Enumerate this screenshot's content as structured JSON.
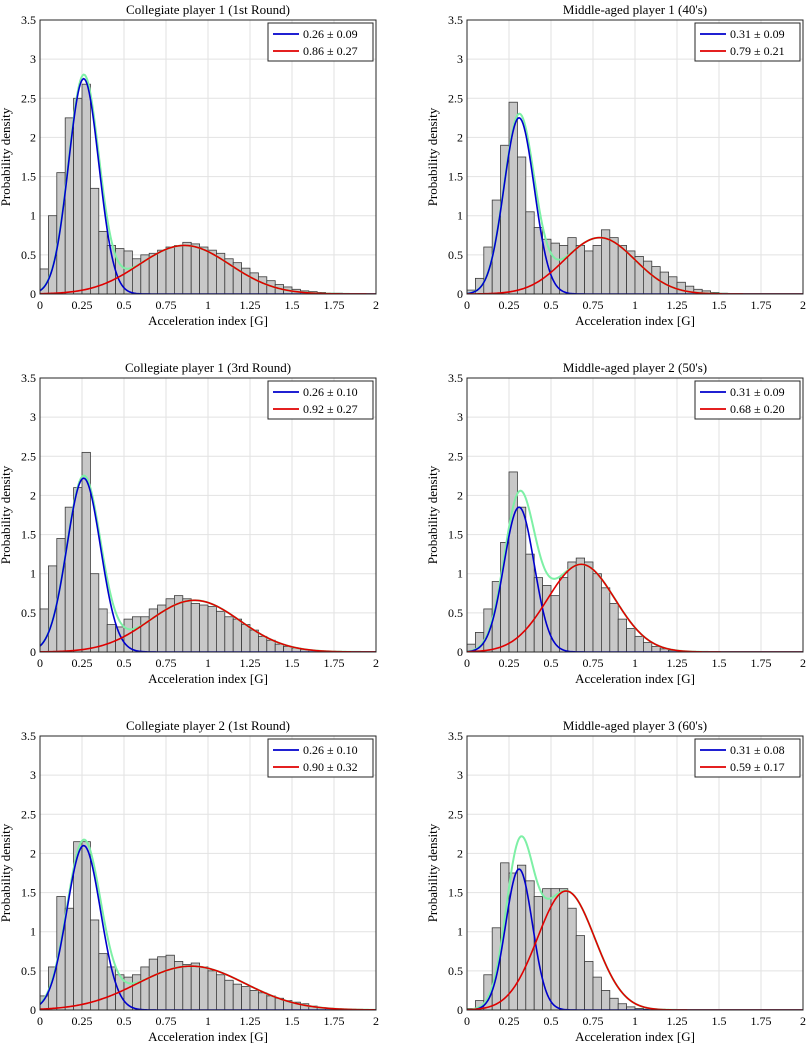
{
  "chart_data": [
    {
      "type": "bar",
      "title": "Collegiate player 1 (1st Round)",
      "xlabel": "Acceleration index [G]",
      "ylabel": "Probability density",
      "xlim": [
        0,
        2
      ],
      "ylim": [
        0,
        3.5
      ],
      "xticks": [
        "0",
        "0.25",
        "0.5",
        "0.75",
        "1",
        "1.25",
        "1.5",
        "1.75",
        "2"
      ],
      "yticks": [
        "0",
        "0.5",
        "1",
        "1.5",
        "2",
        "2.5",
        "3",
        "3.5"
      ],
      "bin_width": 0.05,
      "bin_start": 0.025,
      "values": [
        0.32,
        1.0,
        1.55,
        2.25,
        2.5,
        2.68,
        1.35,
        0.8,
        0.62,
        0.58,
        0.55,
        0.45,
        0.5,
        0.52,
        0.56,
        0.6,
        0.62,
        0.66,
        0.64,
        0.6,
        0.56,
        0.52,
        0.45,
        0.4,
        0.33,
        0.27,
        0.22,
        0.17,
        0.12,
        0.09,
        0.06,
        0.04,
        0.03,
        0.02,
        0.01,
        0.01,
        0.0,
        0.0,
        0.0
      ],
      "series": [
        {
          "name": "0.26 ± 0.09",
          "color": "#0000cc",
          "mean": 0.26,
          "std": 0.09,
          "peak": 2.75
        },
        {
          "name": "0.86 ± 0.27",
          "color": "#e00000",
          "mean": 0.86,
          "std": 0.27,
          "peak": 0.62
        }
      ],
      "mixture_color": "#7ef0a6",
      "legend": "top-right"
    },
    {
      "type": "bar",
      "title": "Middle-aged player 1 (40's)",
      "xlabel": "Acceleration index [G]",
      "ylabel": "Probability density",
      "xlim": [
        0,
        2
      ],
      "ylim": [
        0,
        3.5
      ],
      "xticks": [
        "0",
        "0.25",
        "0.5",
        "0.75",
        "1",
        "1.25",
        "1.5",
        "1.75",
        "2"
      ],
      "yticks": [
        "0",
        "0.5",
        "1",
        "1.5",
        "2",
        "2.5",
        "3",
        "3.5"
      ],
      "bin_width": 0.05,
      "bin_start": 0.025,
      "values": [
        0.05,
        0.2,
        0.6,
        1.2,
        1.9,
        2.45,
        1.75,
        1.05,
        0.85,
        0.7,
        0.65,
        0.62,
        0.72,
        0.62,
        0.55,
        0.62,
        0.82,
        0.72,
        0.62,
        0.55,
        0.48,
        0.42,
        0.35,
        0.28,
        0.22,
        0.15,
        0.1,
        0.06,
        0.04,
        0.02,
        0.01,
        0.0,
        0.0,
        0.0,
        0.0,
        0.0,
        0.0,
        0.0,
        0.0
      ],
      "series": [
        {
          "name": "0.31 ± 0.09",
          "color": "#0000cc",
          "mean": 0.31,
          "std": 0.09,
          "peak": 2.25
        },
        {
          "name": "0.79 ± 0.21",
          "color": "#e00000",
          "mean": 0.79,
          "std": 0.21,
          "peak": 0.72
        }
      ],
      "mixture_color": "#7ef0a6",
      "legend": "top-right"
    },
    {
      "type": "bar",
      "title": "Collegiate player 1 (3rd Round)",
      "xlabel": "Acceleration index [G]",
      "ylabel": "Probability density",
      "xlim": [
        0,
        2
      ],
      "ylim": [
        0,
        3.5
      ],
      "xticks": [
        "0",
        "0.25",
        "0.5",
        "0.75",
        "1",
        "1.25",
        "1.5",
        "1.75",
        "2"
      ],
      "yticks": [
        "0",
        "0.5",
        "1",
        "1.5",
        "2",
        "2.5",
        "3",
        "3.5"
      ],
      "bin_width": 0.05,
      "bin_start": 0.025,
      "values": [
        0.55,
        1.1,
        1.45,
        1.85,
        2.1,
        2.55,
        1.0,
        0.55,
        0.35,
        0.32,
        0.42,
        0.45,
        0.45,
        0.55,
        0.6,
        0.68,
        0.72,
        0.68,
        0.62,
        0.6,
        0.58,
        0.52,
        0.45,
        0.42,
        0.35,
        0.28,
        0.2,
        0.15,
        0.1,
        0.07,
        0.05,
        0.03,
        0.02,
        0.01,
        0.01,
        0.0,
        0.0,
        0.0,
        0.0
      ],
      "series": [
        {
          "name": "0.26 ± 0.10",
          "color": "#0000cc",
          "mean": 0.26,
          "std": 0.1,
          "peak": 2.22
        },
        {
          "name": "0.92 ± 0.27",
          "color": "#e00000",
          "mean": 0.92,
          "std": 0.27,
          "peak": 0.66
        }
      ],
      "mixture_color": "#7ef0a6",
      "legend": "top-right"
    },
    {
      "type": "bar",
      "title": "Middle-aged player 2 (50's)",
      "xlabel": "Acceleration index [G]",
      "ylabel": "Probability density",
      "xlim": [
        0,
        2
      ],
      "ylim": [
        0,
        3.5
      ],
      "xticks": [
        "0",
        "0.25",
        "0.5",
        "0.75",
        "1",
        "1.25",
        "1.5",
        "1.75",
        "2"
      ],
      "yticks": [
        "0",
        "0.5",
        "1",
        "1.5",
        "2",
        "2.5",
        "3",
        "3.5"
      ],
      "bin_width": 0.05,
      "bin_start": 0.025,
      "values": [
        0.1,
        0.25,
        0.55,
        0.9,
        1.4,
        2.3,
        1.85,
        1.25,
        0.95,
        0.85,
        0.72,
        0.95,
        1.15,
        1.2,
        1.15,
        1.0,
        0.82,
        0.62,
        0.42,
        0.3,
        0.2,
        0.12,
        0.07,
        0.04,
        0.02,
        0.01,
        0.0,
        0.0,
        0.0,
        0.0,
        0.0,
        0.0,
        0.0,
        0.0,
        0.0,
        0.0,
        0.0,
        0.0,
        0.0
      ],
      "series": [
        {
          "name": "0.31 ± 0.09",
          "color": "#0000cc",
          "mean": 0.31,
          "std": 0.09,
          "peak": 1.85
        },
        {
          "name": "0.68 ± 0.20",
          "color": "#e00000",
          "mean": 0.68,
          "std": 0.2,
          "peak": 1.12
        }
      ],
      "mixture_color": "#7ef0a6",
      "legend": "top-right"
    },
    {
      "type": "bar",
      "title": "Collegiate player 2 (1st Round)",
      "xlabel": "Acceleration index [G]",
      "ylabel": "Probability density",
      "xlim": [
        0,
        2
      ],
      "ylim": [
        0,
        3.5
      ],
      "xticks": [
        "0",
        "0.25",
        "0.5",
        "0.75",
        "1",
        "1.25",
        "1.5",
        "1.75",
        "2"
      ],
      "yticks": [
        "0",
        "0.5",
        "1",
        "1.5",
        "2",
        "2.5",
        "3",
        "3.5"
      ],
      "bin_width": 0.05,
      "bin_start": 0.025,
      "values": [
        0.18,
        0.55,
        1.45,
        1.3,
        2.15,
        2.15,
        1.15,
        0.72,
        0.55,
        0.45,
        0.42,
        0.45,
        0.55,
        0.65,
        0.68,
        0.7,
        0.62,
        0.58,
        0.6,
        0.55,
        0.5,
        0.45,
        0.38,
        0.33,
        0.3,
        0.25,
        0.22,
        0.18,
        0.15,
        0.12,
        0.1,
        0.08,
        0.05,
        0.03,
        0.02,
        0.01,
        0.0,
        0.0,
        0.0
      ],
      "series": [
        {
          "name": "0.26 ± 0.10",
          "color": "#0000cc",
          "mean": 0.26,
          "std": 0.1,
          "peak": 2.1
        },
        {
          "name": "0.90 ± 0.32",
          "color": "#e00000",
          "mean": 0.9,
          "std": 0.32,
          "peak": 0.56
        }
      ],
      "mixture_color": "#7ef0a6",
      "legend": "top-right"
    },
    {
      "type": "bar",
      "title": "Middle-aged player 3 (60's)",
      "xlabel": "Acceleration index [G]",
      "ylabel": "Probability density",
      "xlim": [
        0,
        2
      ],
      "ylim": [
        0,
        3.5
      ],
      "xticks": [
        "0",
        "0.25",
        "0.5",
        "0.75",
        "1",
        "1.25",
        "1.5",
        "1.75",
        "2"
      ],
      "yticks": [
        "0",
        "0.5",
        "1",
        "1.5",
        "2",
        "2.5",
        "3",
        "3.5"
      ],
      "bin_width": 0.05,
      "bin_start": 0.025,
      "values": [
        0.02,
        0.12,
        0.45,
        1.05,
        1.88,
        1.75,
        1.85,
        1.65,
        1.45,
        1.55,
        1.55,
        1.55,
        1.3,
        0.95,
        0.62,
        0.42,
        0.25,
        0.15,
        0.08,
        0.04,
        0.02,
        0.01,
        0.0,
        0.0,
        0.0,
        0.0,
        0.0,
        0.0,
        0.0,
        0.0,
        0.0,
        0.0,
        0.0,
        0.0,
        0.0,
        0.0,
        0.0,
        0.0,
        0.0
      ],
      "series": [
        {
          "name": "0.31 ± 0.08",
          "color": "#0000cc",
          "mean": 0.31,
          "std": 0.08,
          "peak": 1.8
        },
        {
          "name": "0.59 ± 0.17",
          "color": "#e00000",
          "mean": 0.59,
          "std": 0.17,
          "peak": 1.52
        }
      ],
      "mixture_color": "#7ef0a6",
      "legend": "top-right"
    }
  ]
}
